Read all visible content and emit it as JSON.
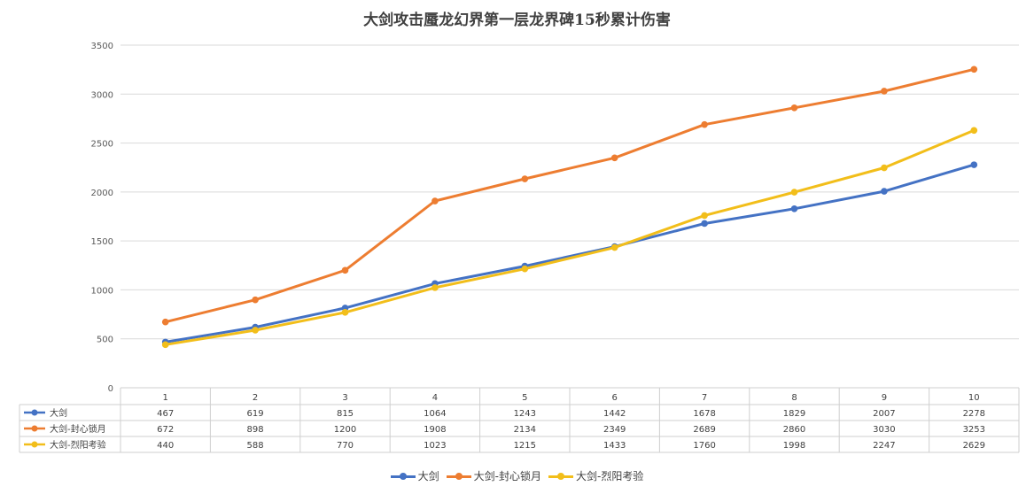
{
  "chart_data": {
    "type": "line",
    "title": "大剑攻击蜃龙幻界第一层龙界碑15秒累计伤害",
    "categories": [
      "1",
      "2",
      "3",
      "4",
      "5",
      "6",
      "7",
      "8",
      "9",
      "10"
    ],
    "ylim": [
      0,
      3500
    ],
    "yticks": [
      "0",
      "500",
      "1000",
      "1500",
      "2000",
      "2500",
      "3000",
      "3500"
    ],
    "grid": true,
    "legend_position": "bottom",
    "data_table": true,
    "series": [
      {
        "name": "大剑",
        "color": "#4472C4",
        "values": [
          467,
          619,
          815,
          1064,
          1243,
          1442,
          1678,
          1829,
          2007,
          2278
        ]
      },
      {
        "name": "大剑-封心锁月",
        "color": "#ED7D31",
        "values": [
          672,
          898,
          1200,
          1908,
          2134,
          2349,
          2689,
          2860,
          3030,
          3253
        ]
      },
      {
        "name": "大剑-烈阳考验",
        "color": "#F2BE1A",
        "values": [
          440,
          588,
          770,
          1023,
          1215,
          1433,
          1760,
          1998,
          2247,
          2629
        ]
      }
    ]
  }
}
